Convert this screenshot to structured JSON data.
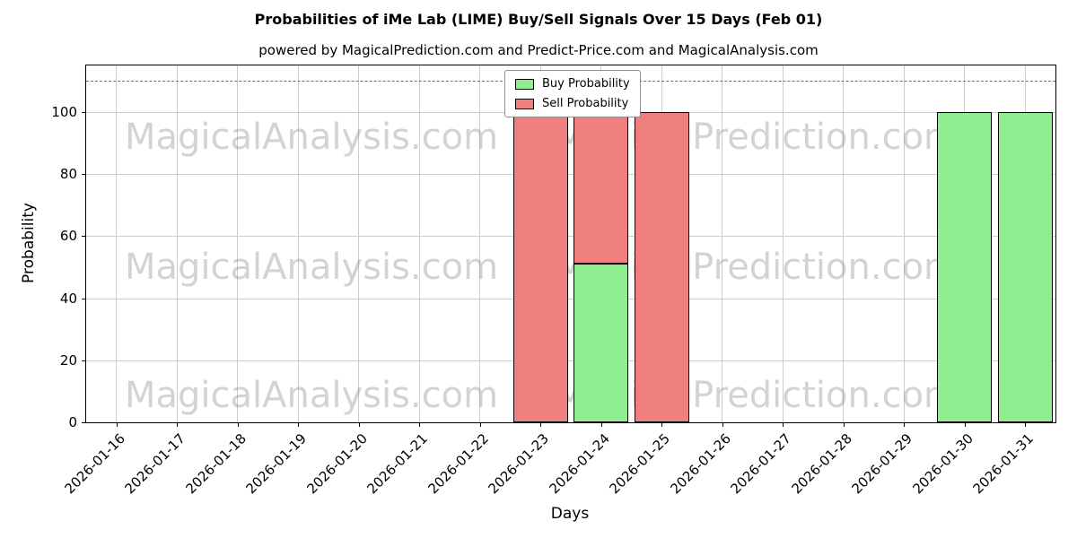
{
  "chart_data": {
    "type": "bar",
    "stacked": true,
    "title": "Probabilities of iMe Lab (LIME) Buy/Sell Signals Over 15 Days (Feb 01)",
    "subtitle": "powered by MagicalPrediction.com and Predict-Price.com and MagicalAnalysis.com",
    "xlabel": "Days",
    "ylabel": "Probability",
    "categories": [
      "2026-01-16",
      "2026-01-17",
      "2026-01-18",
      "2026-01-19",
      "2026-01-20",
      "2026-01-21",
      "2026-01-22",
      "2026-01-23",
      "2026-01-24",
      "2026-01-25",
      "2026-01-26",
      "2026-01-27",
      "2026-01-28",
      "2026-01-29",
      "2026-01-30",
      "2026-01-31"
    ],
    "series": [
      {
        "name": "Buy Probability",
        "color": "#90ee90",
        "values": [
          0,
          0,
          0,
          0,
          0,
          0,
          0,
          0,
          51,
          0,
          0,
          0,
          0,
          0,
          100,
          100
        ]
      },
      {
        "name": "Sell Probability",
        "color": "#f08080",
        "values": [
          0,
          0,
          0,
          0,
          0,
          0,
          0,
          100,
          49,
          100,
          0,
          0,
          0,
          0,
          0,
          0
        ]
      }
    ],
    "ylim": [
      0,
      115
    ],
    "yticks": [
      0,
      20,
      40,
      60,
      80,
      100
    ],
    "reference_line_y": 110,
    "grid": true,
    "legend_position": "upper center"
  },
  "watermarks": {
    "left": "MagicalAnalysis.com",
    "right": "MagicalPrediction.com"
  }
}
